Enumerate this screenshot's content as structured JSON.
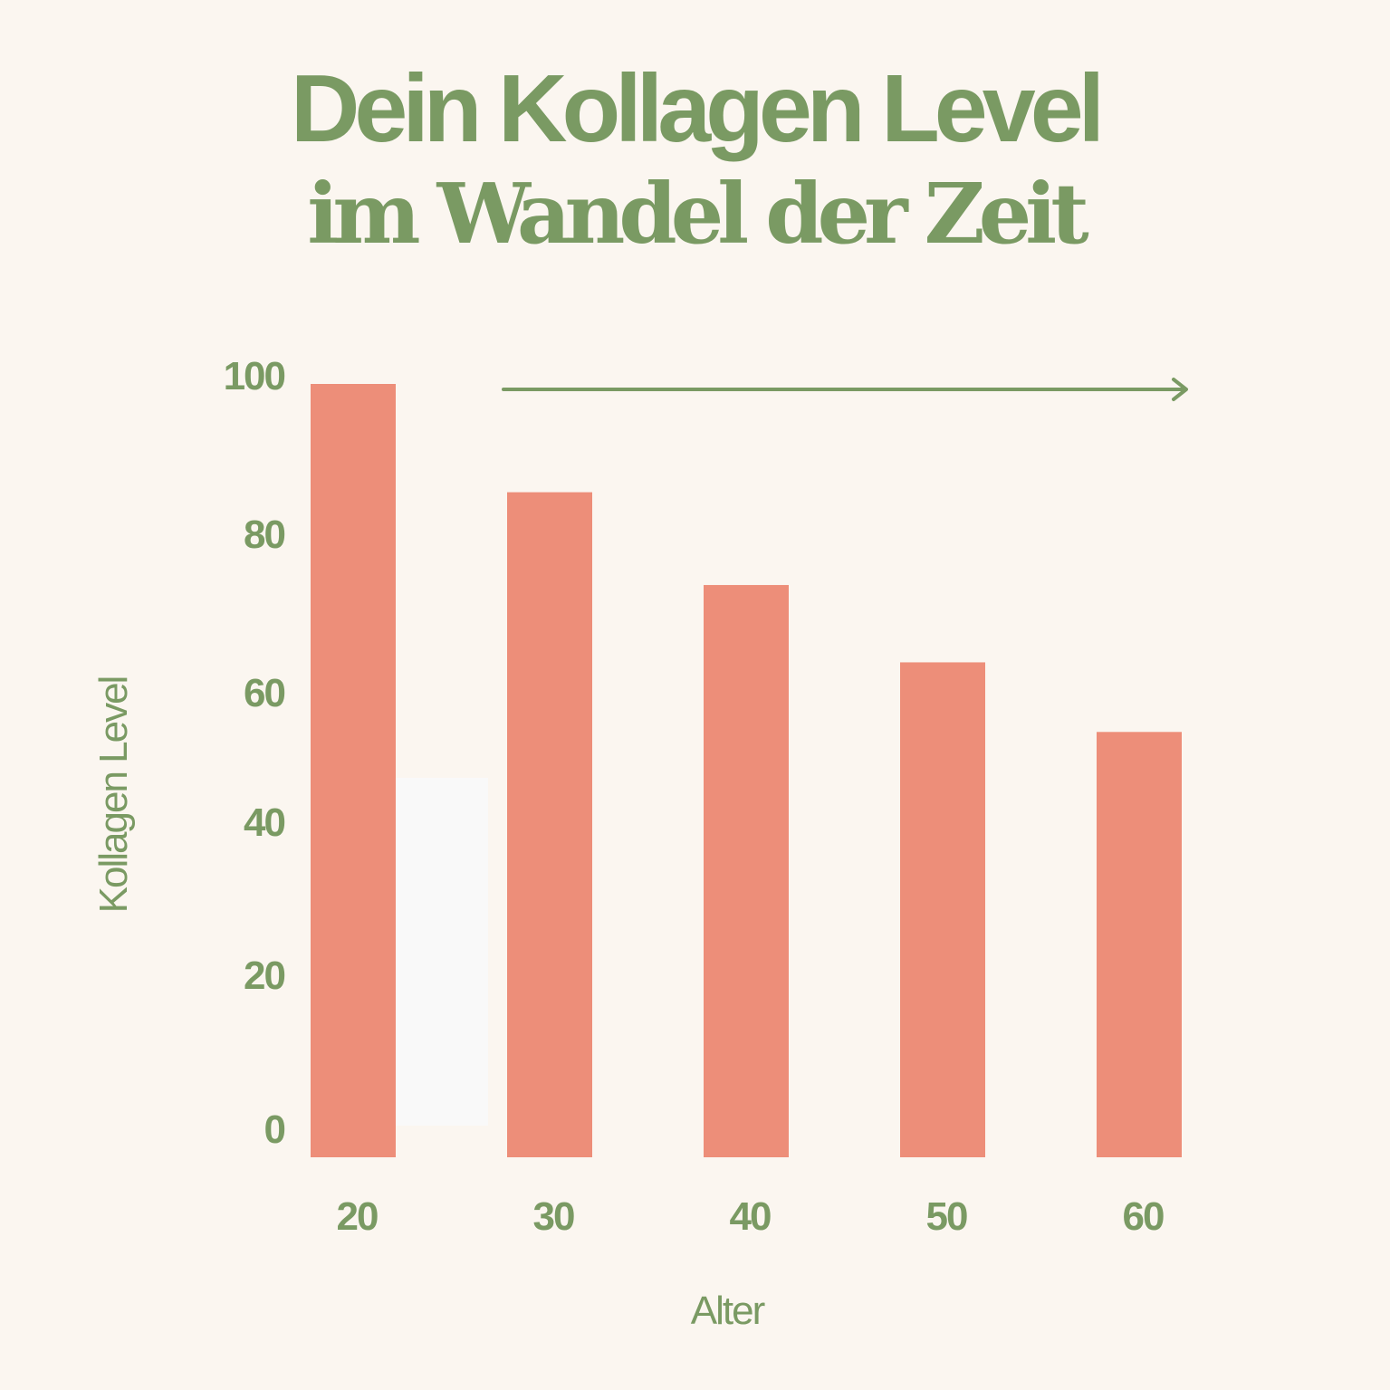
{
  "header": {
    "title_line1": "Dein Kollagen Level",
    "title_line2": "im Wandel der Zeit"
  },
  "colors": {
    "background": "#fbf6f0",
    "bar": "#ed8e79",
    "text": "#7a9a63",
    "ghost_bar": "#f9f9f9"
  },
  "chart_data": {
    "type": "bar",
    "title": "Dein Kollagen Level im Wandel der Zeit",
    "xlabel": "Alter",
    "ylabel": "Kollagen Level",
    "categories": [
      "20",
      "30",
      "40",
      "50",
      "60"
    ],
    "values": [
      100,
      86,
      74,
      64,
      55
    ],
    "ylim": [
      0,
      100
    ],
    "yticks": [
      "100",
      "80",
      "60",
      "40",
      "20",
      "0"
    ],
    "grid": false,
    "legend": "none",
    "arrow": "right-pointing arrow above bars from age 30 to 60"
  }
}
